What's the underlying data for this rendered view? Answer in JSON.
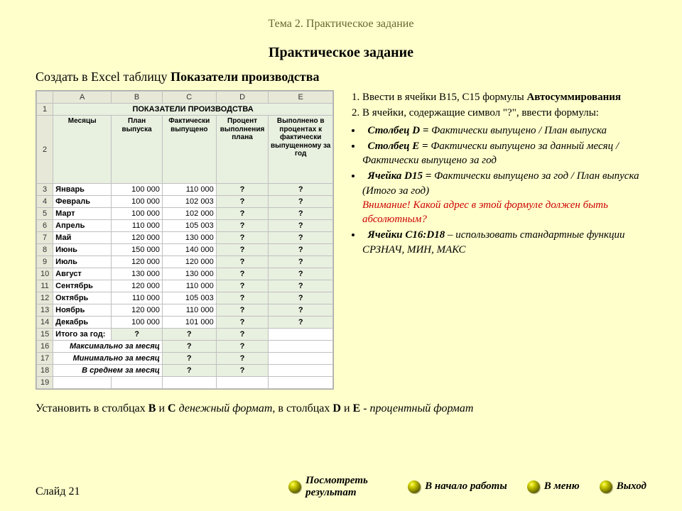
{
  "topic_line": "Тема 2. Практическое задание",
  "main_title": "Практическое задание",
  "subtitle_prefix": "Создать в Excel таблицу ",
  "subtitle_bold": "Показатели производства",
  "excel": {
    "col_headers": [
      "A",
      "B",
      "C",
      "D",
      "E"
    ],
    "title": "ПОКАЗАТЕЛИ ПРОИЗВОДСТВА",
    "field_headers": [
      "Месяцы",
      "План выпуска",
      "Фактически выпущено",
      "Процент выполнения плана",
      "Выполнено в процентах к фактически выпущенному за год"
    ],
    "rows": [
      {
        "n": "3",
        "m": "Январь",
        "b": "100 000",
        "c": "110 000"
      },
      {
        "n": "4",
        "m": "Февраль",
        "b": "100 000",
        "c": "102 003"
      },
      {
        "n": "5",
        "m": "Март",
        "b": "100 000",
        "c": "102 000"
      },
      {
        "n": "6",
        "m": "Апрель",
        "b": "110 000",
        "c": "105 003"
      },
      {
        "n": "7",
        "m": "Май",
        "b": "120 000",
        "c": "130 000"
      },
      {
        "n": "8",
        "m": "Июнь",
        "b": "150 000",
        "c": "140 000"
      },
      {
        "n": "9",
        "m": "Июль",
        "b": "120 000",
        "c": "120 000"
      },
      {
        "n": "10",
        "m": "Август",
        "b": "130 000",
        "c": "130 000"
      },
      {
        "n": "11",
        "m": "Сентябрь",
        "b": "120 000",
        "c": "110 000"
      },
      {
        "n": "12",
        "m": "Октябрь",
        "b": "110 000",
        "c": "105 003"
      },
      {
        "n": "13",
        "m": "Ноябрь",
        "b": "120 000",
        "c": "110 000"
      },
      {
        "n": "14",
        "m": "Декабрь",
        "b": "100 000",
        "c": "101 000"
      }
    ],
    "total_label": "Итого за год:",
    "stat_rows": [
      {
        "n": "16",
        "label": "Максимально за месяц"
      },
      {
        "n": "17",
        "label": "Минимально за месяц"
      },
      {
        "n": "18",
        "label": "В среднем за месяц"
      }
    ],
    "q": "?"
  },
  "instr": {
    "ol1_a": "Ввести в ячейки B15, C15 формулы ",
    "ol1_b": "Автосуммирования",
    "ol2": "В ячейки, содержащие  символ \"?\", ввести формулы:",
    "b1_label": "Столбец D =",
    "b1_text": "  Фактически выпущено / План выпуска",
    "b2_label": "Столбец E =",
    "b2_text": " Фактически выпущено за данный месяц / Фактически выпущено за год",
    "b3_label": "Ячейка D15 =",
    "b3_text": " Фактически выпущено за год / План выпуска (Итого за год)",
    "warn": "Внимание! Какой адрес в этой формуле должен быть абсолютным?",
    "b4_label": "Ячейки С16:D18",
    "b4_text": " – использовать стандартные функции СРЗНАЧ, МИН, МАКС"
  },
  "footer_note_parts": {
    "p1": "Установить в столбцах  ",
    "p2": "В",
    "p3": " и ",
    "p4": "С",
    "p5": " ",
    "p6": "денежный формат",
    "p7": ", в столбцах ",
    "p8": "D",
    "p9": " и  ",
    "p10": "E",
    "p11": " - ",
    "p12": "процентный формат"
  },
  "slide_num": "Слайд 21",
  "nav": {
    "result": "Посмотреть результат",
    "start": "В начало работы",
    "menu": "В меню",
    "exit": "Выход"
  },
  "colors": {
    "page_bg": "#ffffcc",
    "topic_color": "#666633",
    "warn_color": "#cc0000",
    "excel_header_bg": "#e8e8d8",
    "excel_green_bg": "#e8f0e0"
  }
}
